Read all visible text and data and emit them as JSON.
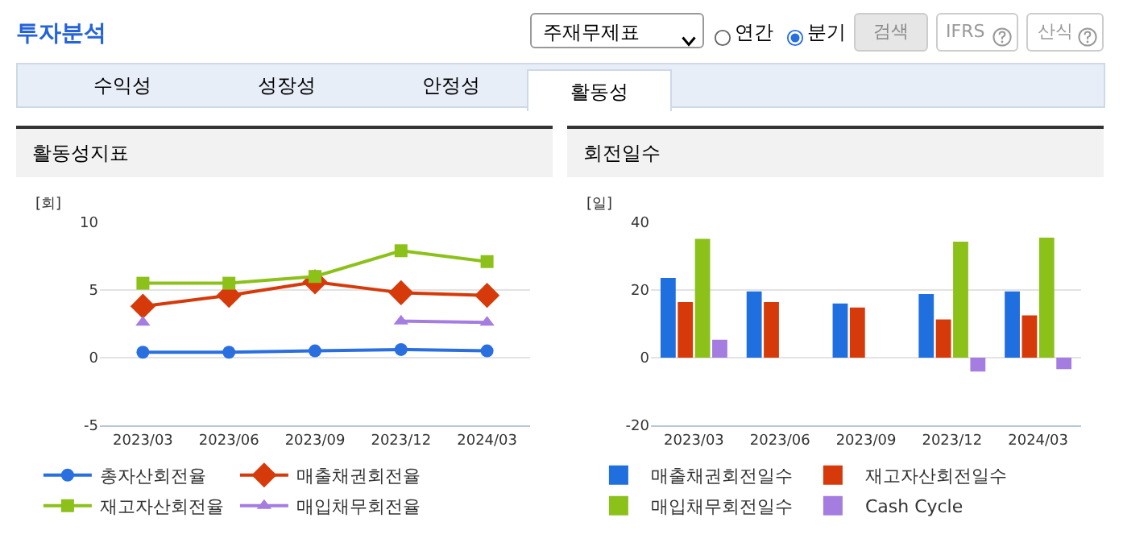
{
  "chart_data": [
    {
      "type": "other",
      "title": "투자분석",
      "annotations": [
        "주재무제표",
        "연간",
        "분기",
        "검색",
        "IFRS",
        "산식",
        "수익성",
        "성장성",
        "안정성",
        "활동성"
      ]
    },
    {
      "type": "line",
      "title": "활동성지표",
      "ylabel": "[회]",
      "categories": [
        "2023/03",
        "2023/06",
        "2023/09",
        "2023/12",
        "2024/03"
      ],
      "series": [
        {
          "name": "총자산회전율",
          "color": "#2a6fe0",
          "marker": "circle",
          "values": [
            0.4,
            0.4,
            0.5,
            0.6,
            0.5
          ]
        },
        {
          "name": "매출채권회전율",
          "color": "#d63a0a",
          "marker": "diamond",
          "values": [
            3.8,
            4.6,
            5.6,
            4.8,
            4.6
          ]
        },
        {
          "name": "재고자산회전율",
          "color": "#8cc11a",
          "marker": "square",
          "values": [
            5.5,
            5.5,
            6.0,
            7.9,
            7.1
          ]
        },
        {
          "name": "매입채무회전율",
          "color": "#a57de0",
          "marker": "triangle",
          "values": [
            2.6,
            null,
            null,
            2.7,
            2.6
          ]
        }
      ],
      "ylim": [
        -5,
        10
      ],
      "yticks": [
        -5,
        0,
        5,
        10
      ],
      "grid": "y",
      "legend": "bottom"
    },
    {
      "type": "bar",
      "title": "회전일수",
      "ylabel": "[일]",
      "categories": [
        "2023/03",
        "2023/06",
        "2023/09",
        "2023/12",
        "2024/03"
      ],
      "series": [
        {
          "name": "매출채권회전일수",
          "color": "#1f6fde",
          "values": [
            23.6,
            19.6,
            16.0,
            18.8,
            19.6
          ]
        },
        {
          "name": "재고자산회전일수",
          "color": "#d63a0a",
          "values": [
            16.4,
            16.4,
            14.8,
            11.3,
            12.5
          ]
        },
        {
          "name": "매입채무회전일수",
          "color": "#8cc11a",
          "values": [
            35.1,
            null,
            null,
            34.3,
            35.5
          ]
        },
        {
          "name": "Cash Cycle",
          "color": "#a57de0",
          "values": [
            5.3,
            null,
            null,
            -4.1,
            -3.4
          ]
        }
      ],
      "ylim": [
        -20,
        40
      ],
      "yticks": [
        -20,
        0,
        20,
        40
      ],
      "grid": "y",
      "legend": "bottom"
    }
  ]
}
